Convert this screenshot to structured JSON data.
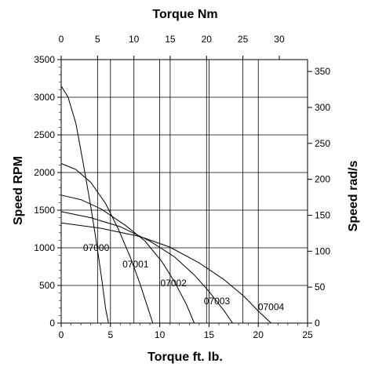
{
  "chart_data": {
    "type": "line",
    "axes": {
      "bottom": {
        "label": "Torque ft. lb.",
        "min": 0,
        "max": 25,
        "ticks": [
          0,
          5,
          10,
          15,
          20,
          25
        ]
      },
      "top": {
        "label": "Torque Nm",
        "ticks": [
          0,
          5,
          10,
          15,
          20,
          25,
          30
        ],
        "tick_positions_ftlb": [
          0,
          3.69,
          7.38,
          11.06,
          14.75,
          18.44,
          22.13
        ]
      },
      "left": {
        "label": "Speed RPM",
        "min": 0,
        "max": 3500,
        "ticks": [
          0,
          500,
          1000,
          1500,
          2000,
          2500,
          3000,
          3500
        ]
      },
      "right": {
        "label": "Speed rad/s",
        "ticks": [
          0,
          50,
          100,
          150,
          200,
          250,
          300,
          350
        ],
        "tick_positions_rpm": [
          0,
          477.5,
          954.9,
          1432.4,
          1909.9,
          2387.3,
          2864.8,
          3342.3
        ]
      }
    },
    "grid": true,
    "vertical_gridlines_x": [
      3.69,
      5,
      7.38,
      10,
      11.06,
      15,
      14.75,
      20,
      18.44
    ],
    "series": [
      {
        "name": "07000",
        "x": [
          0,
          0.7,
          1.5,
          2.2,
          3.0,
          3.6,
          4.1,
          4.5,
          4.8
        ],
        "y": [
          3150,
          3000,
          2650,
          2150,
          1550,
          1050,
          600,
          200,
          0
        ]
      },
      {
        "name": "07001",
        "x": [
          0,
          1.5,
          3.0,
          4.5,
          5.8,
          7.0,
          8.0,
          8.8,
          9.3
        ],
        "y": [
          2120,
          2040,
          1870,
          1590,
          1250,
          880,
          520,
          200,
          0
        ]
      },
      {
        "name": "07002",
        "x": [
          0,
          2.0,
          4.0,
          6.5,
          8.5,
          10.2,
          11.5,
          12.7,
          13.5
        ],
        "y": [
          1700,
          1640,
          1520,
          1300,
          1090,
          820,
          550,
          250,
          0
        ]
      },
      {
        "name": "07003",
        "x": [
          0,
          3.0,
          6.0,
          9.0,
          11.5,
          13.5,
          15.0,
          16.5,
          17.4
        ],
        "y": [
          1480,
          1400,
          1280,
          1090,
          880,
          640,
          420,
          170,
          0
        ]
      },
      {
        "name": "07004",
        "x": [
          0,
          4.0,
          8.0,
          11.0,
          14.0,
          16.5,
          18.5,
          20.0,
          21.3
        ],
        "y": [
          1330,
          1260,
          1150,
          1010,
          800,
          580,
          360,
          160,
          0
        ]
      }
    ],
    "series_labels": [
      {
        "text": "07000",
        "x": 3.55,
        "y": 960
      },
      {
        "text": "07001",
        "x": 7.55,
        "y": 740
      },
      {
        "text": "07002",
        "x": 11.4,
        "y": 490
      },
      {
        "text": "07003",
        "x": 15.8,
        "y": 250
      },
      {
        "text": "07004",
        "x": 21.3,
        "y": 170
      }
    ]
  }
}
